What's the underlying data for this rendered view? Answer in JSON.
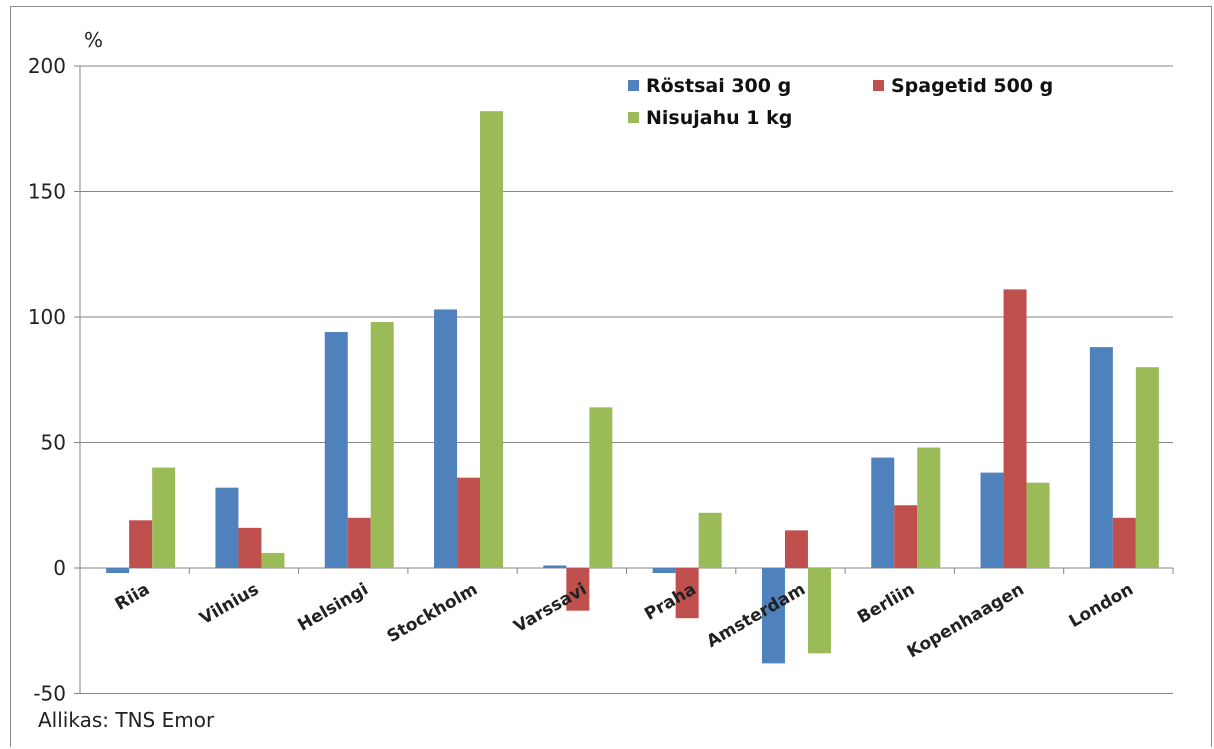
{
  "chart_data": {
    "type": "bar",
    "ylabel": "%",
    "ylim": [
      -50,
      200
    ],
    "yticks": [
      -50,
      0,
      50,
      100,
      150,
      200
    ],
    "grid": true,
    "legend_position": "top-right",
    "categories": [
      "Riia",
      "Vilnius",
      "Helsingi",
      "Stockholm",
      "Varssavi",
      "Praha",
      "Amsterdam",
      "Berliin",
      "Kopenhaagen",
      "London"
    ],
    "series": [
      {
        "name": "Röstsai 300 g",
        "color": "#4F81BD",
        "values": [
          -2,
          32,
          94,
          103,
          1,
          -2,
          -38,
          44,
          38,
          88
        ]
      },
      {
        "name": "Spagetid 500 g",
        "color": "#C0504D",
        "values": [
          19,
          16,
          20,
          36,
          -17,
          -20,
          15,
          25,
          111,
          20
        ]
      },
      {
        "name": "Nisujahu 1 kg",
        "color": "#9BBB59",
        "values": [
          40,
          6,
          98,
          182,
          64,
          22,
          -34,
          48,
          34,
          80
        ]
      }
    ]
  },
  "source": "Allikas: TNS Emor"
}
